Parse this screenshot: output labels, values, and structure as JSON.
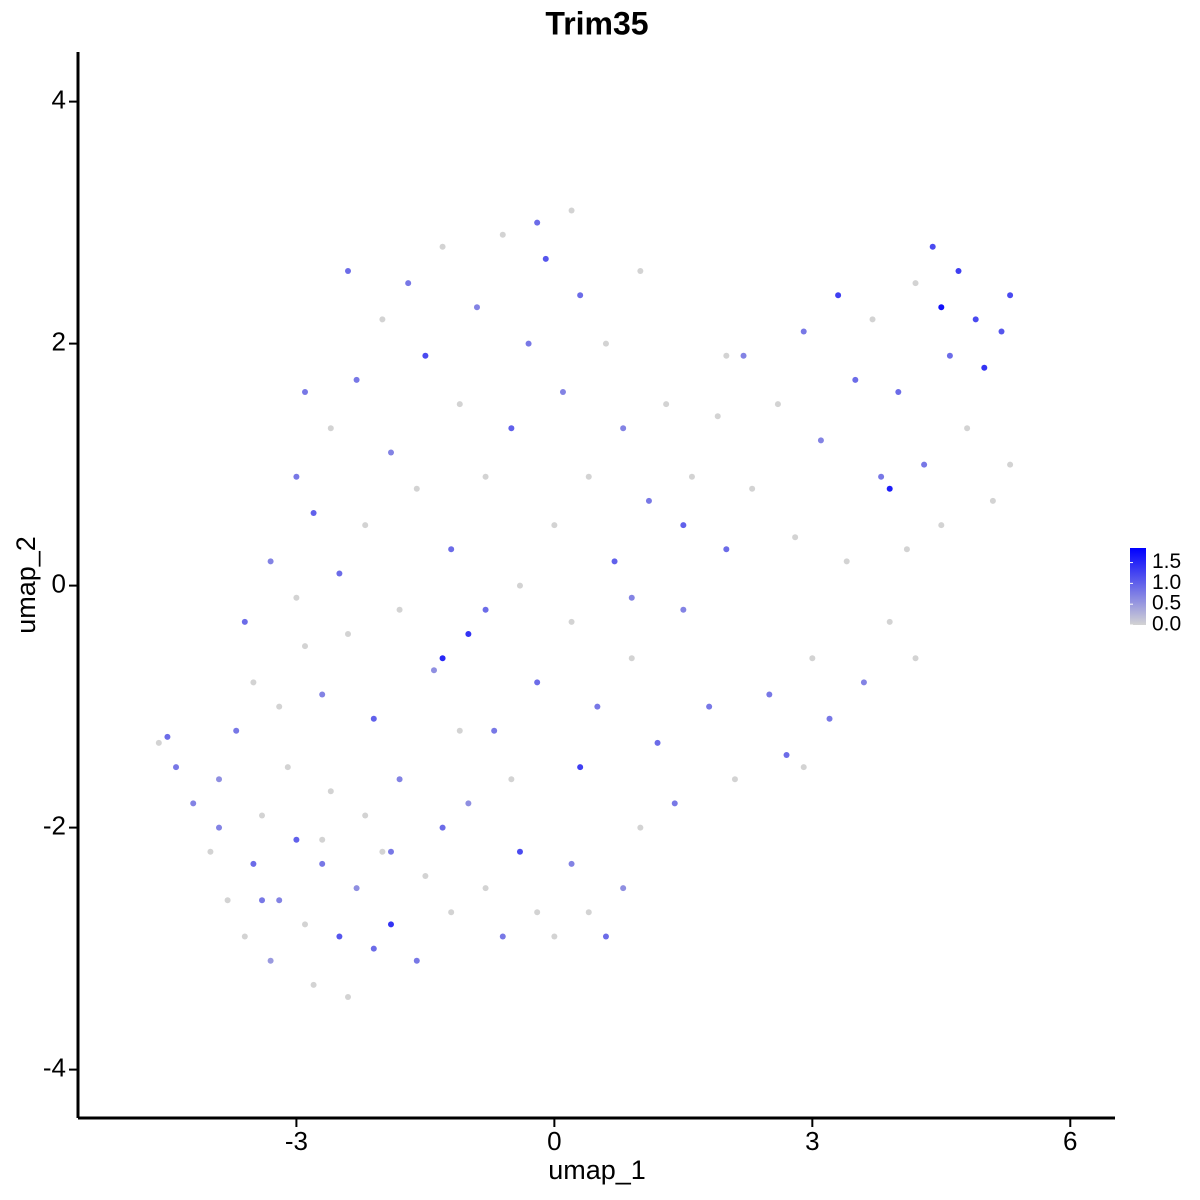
{
  "chart_data": {
    "type": "scatter",
    "title": "Trim35",
    "x_label": "umap_1",
    "y_label": "umap_2",
    "xlim": [
      -5.54,
      6.52
    ],
    "ylim": [
      -4.4,
      4.41
    ],
    "xticks": [
      -3,
      0,
      3,
      6
    ],
    "yticks": [
      -4,
      -2,
      0,
      2,
      4
    ],
    "color_low": "#d3d3d3",
    "color_high": "#0000ff",
    "color_lim": [
      0,
      1.85
    ],
    "color_ticks": [
      {
        "value": 0,
        "label": "0.0"
      },
      0.5,
      {
        "value": 1,
        "label": "1.0"
      },
      1.5
    ],
    "x": [
      -4.6,
      -4.5,
      -4.4,
      -4.2,
      -4.0,
      -3.9,
      -3.8,
      -3.7,
      -3.6,
      -3.5,
      -3.4,
      -3.3,
      -3.2,
      -3.1,
      -3.0,
      -2.9,
      -2.8,
      -2.7,
      -2.6,
      -2.5,
      -2.4,
      -2.3,
      -2.2,
      -2.1,
      -2.0,
      -1.9,
      -1.8,
      -1.6,
      -1.5,
      -1.3,
      -1.2,
      -1.0,
      -0.8,
      -0.6,
      -0.4,
      -0.2,
      0.0,
      0.2,
      0.4,
      0.6,
      0.8,
      1.0,
      -3.6,
      -3.5,
      -3.3,
      -3.2,
      -3.0,
      -2.9,
      -2.8,
      -2.7,
      -2.6,
      -2.5,
      -2.4,
      -2.3,
      -2.2,
      -2.1,
      -2.0,
      -1.9,
      -1.8,
      -1.7,
      -1.6,
      -1.5,
      -1.4,
      -1.3,
      -1.2,
      -1.1,
      -1.0,
      -0.9,
      -0.8,
      -0.7,
      -0.6,
      -0.5,
      -0.4,
      -0.3,
      -0.2,
      -0.1,
      0.0,
      0.1,
      0.2,
      0.3,
      0.4,
      0.5,
      0.6,
      0.7,
      0.8,
      0.9,
      1.0,
      1.1,
      1.2,
      1.3,
      1.5,
      1.6,
      1.8,
      1.9,
      2.0,
      2.1,
      2.2,
      2.3,
      2.5,
      2.6,
      2.7,
      2.8,
      2.9,
      3.0,
      3.1,
      3.2,
      3.3,
      3.4,
      3.5,
      3.6,
      3.7,
      3.8,
      3.9,
      3.9,
      4.0,
      4.1,
      4.2,
      4.3,
      4.4,
      4.5,
      4.5,
      4.6,
      4.7,
      4.8,
      4.9,
      5.0,
      5.1,
      5.2,
      5.3,
      5.3,
      -1.9,
      -2.7,
      -3.9,
      -1.1,
      0.3,
      -0.5,
      1.4,
      -3.0,
      -0.8,
      0.9,
      -2.4,
      -2.9,
      -0.2,
      0.2,
      2.0,
      1.5,
      4.2,
      2.9,
      -1.3,
      -3.4
    ],
    "y": [
      -1.3,
      -1.25,
      -1.5,
      -1.8,
      -2.2,
      -1.6,
      -2.6,
      -1.2,
      -2.9,
      -2.3,
      -1.9,
      -3.1,
      -2.6,
      -1.5,
      -2.1,
      -2.8,
      -3.3,
      -2.3,
      -1.7,
      -2.9,
      -3.4,
      -2.5,
      -1.9,
      -3.0,
      -2.2,
      -2.8,
      -1.6,
      -3.1,
      -2.4,
      -2.0,
      -2.7,
      -1.8,
      -2.5,
      -2.9,
      -2.2,
      -2.7,
      -2.9,
      -2.3,
      -2.7,
      -2.9,
      -2.5,
      -2.0,
      -0.3,
      -0.8,
      0.2,
      -1.0,
      0.9,
      -0.5,
      0.6,
      -0.9,
      1.3,
      0.1,
      -0.4,
      1.7,
      0.5,
      -1.1,
      2.2,
      1.1,
      -0.2,
      2.5,
      0.8,
      1.9,
      -0.7,
      2.8,
      0.3,
      1.5,
      -0.4,
      2.3,
      0.9,
      -1.2,
      2.9,
      1.3,
      0.0,
      2.0,
      -0.8,
      2.7,
      0.5,
      1.6,
      -0.3,
      2.4,
      0.9,
      -1.0,
      2.0,
      0.2,
      1.3,
      -0.6,
      2.6,
      0.7,
      -1.3,
      1.5,
      -0.2,
      0.9,
      -1.0,
      1.4,
      0.3,
      -1.6,
      1.9,
      0.8,
      -0.9,
      1.5,
      -1.4,
      0.4,
      2.1,
      -0.6,
      1.2,
      -1.1,
      2.4,
      0.2,
      1.7,
      -0.8,
      2.2,
      0.9,
      -0.3,
      0.8,
      1.6,
      0.3,
      2.5,
      1.0,
      2.8,
      2.3,
      0.5,
      1.9,
      2.6,
      1.3,
      2.2,
      1.8,
      0.7,
      2.1,
      2.4,
      1.0,
      -2.2,
      -2.1,
      -2.0,
      -1.2,
      -1.5,
      -1.6,
      -1.8,
      -0.1,
      -0.2,
      -0.1,
      2.6,
      1.6,
      3.0,
      3.1,
      1.9,
      0.5,
      -0.6,
      -1.5,
      -0.6,
      -2.6
    ],
    "expression": [
      0,
      0.9,
      0.8,
      0.7,
      0,
      0.6,
      0,
      0.8,
      0,
      0.9,
      0,
      0.5,
      0.7,
      0,
      1.0,
      0,
      0,
      0.8,
      0,
      1.1,
      0,
      0.6,
      0,
      0.9,
      0,
      1.4,
      0.7,
      0.8,
      0,
      0.9,
      0,
      0.6,
      0,
      0.8,
      1.2,
      0,
      0,
      0.7,
      0,
      0.9,
      0.6,
      0,
      0.9,
      0,
      0.7,
      0,
      0.8,
      0,
      1.0,
      0.7,
      0,
      0.9,
      0,
      0.8,
      0,
      1.0,
      0,
      0.7,
      0,
      0.8,
      0,
      1.2,
      0.6,
      0,
      0.9,
      0,
      1.4,
      0.7,
      0,
      0.8,
      0,
      1.0,
      0,
      0.8,
      0.9,
      1.1,
      0,
      0.7,
      0,
      0.9,
      0,
      0.8,
      0,
      1.0,
      0.7,
      0,
      0,
      0.8,
      0.9,
      0,
      0.7,
      0,
      0.8,
      0,
      0.9,
      0,
      0.7,
      0,
      0.8,
      0,
      0.9,
      0,
      0.8,
      0,
      0.7,
      0.8,
      1.3,
      0,
      0.9,
      0.7,
      0,
      0.8,
      0,
      1.6,
      0.9,
      0,
      0,
      0.8,
      1.2,
      1.7,
      0,
      0.9,
      1.3,
      0,
      1.2,
      1.4,
      0,
      1.1,
      1.2,
      0,
      0.8,
      0,
      0.7,
      0,
      1.3,
      0,
      0.8,
      0,
      0.9,
      0.7,
      0.9,
      0.8,
      0.9,
      0,
      0,
      1.0,
      0,
      0,
      1.5,
      0.8
    ]
  }
}
